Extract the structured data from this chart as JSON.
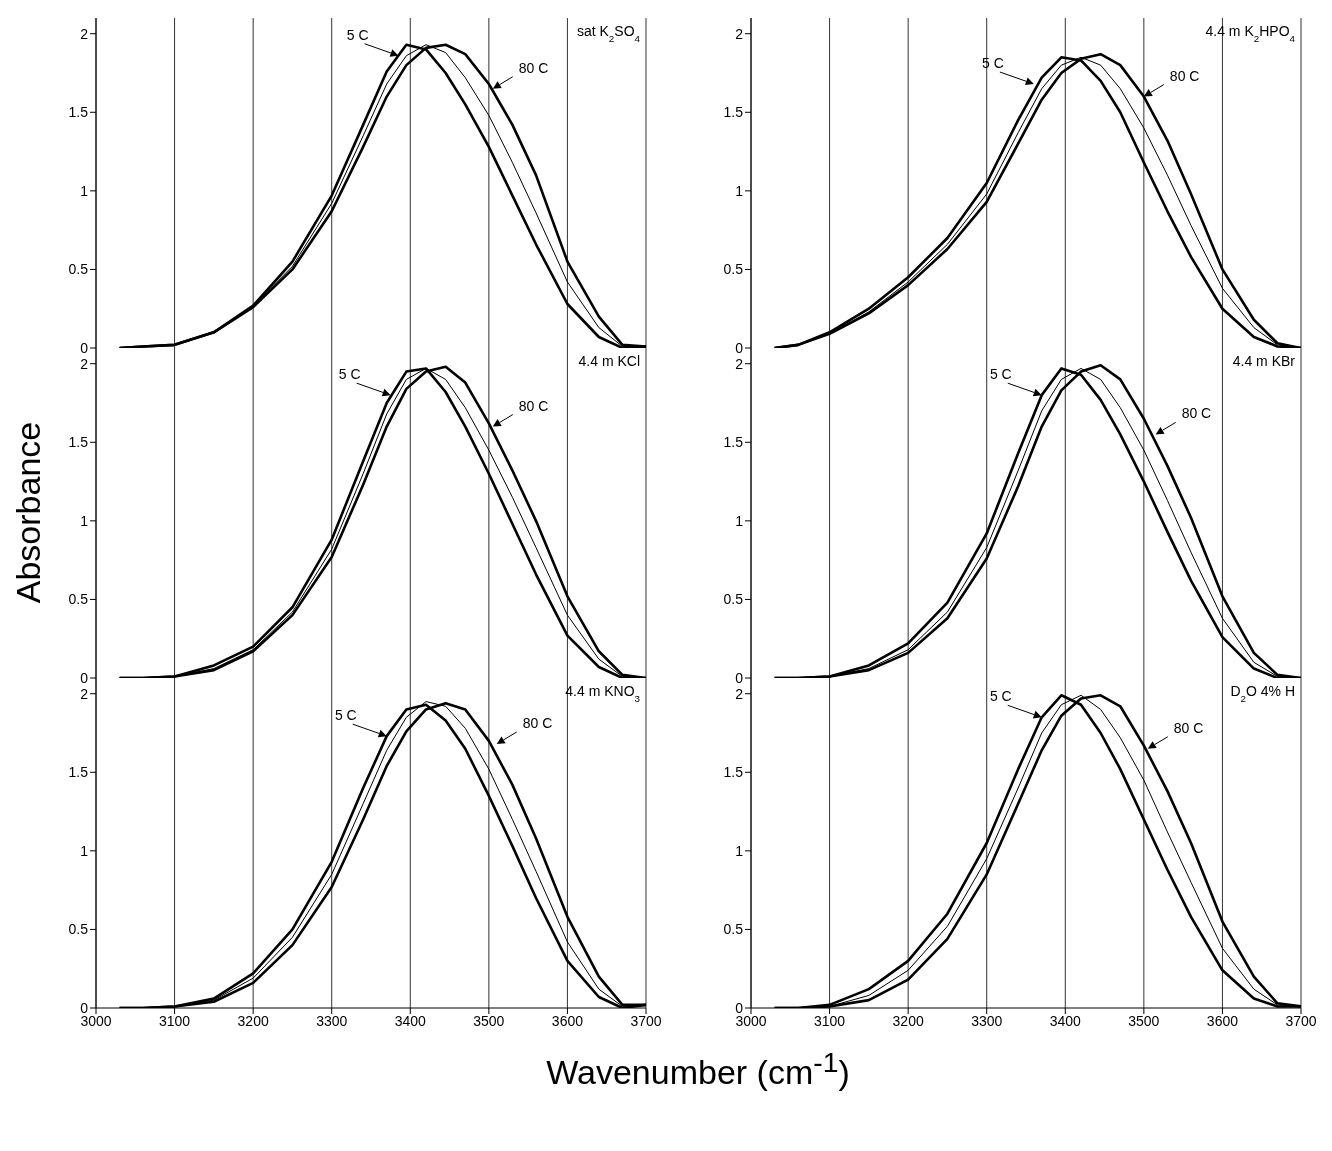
{
  "chart_data": [
    {
      "type": "line",
      "xlim": [
        3000,
        3700
      ],
      "xticks": [
        3000,
        3100,
        3200,
        3300,
        3400,
        3500,
        3600,
        3700
      ],
      "ylim": [
        0,
        2.1
      ],
      "yticks": [
        0,
        0.5,
        1,
        1.5,
        2
      ],
      "grid": "x",
      "tick_labels": "y",
      "marker": "none",
      "line_style": "solid",
      "ylabel": null,
      "x": [
        3030,
        3060,
        3100,
        3150,
        3200,
        3250,
        3300,
        3340,
        3370,
        3395,
        3420,
        3445,
        3470,
        3500,
        3530,
        3560,
        3600,
        3640,
        3670,
        3700
      ],
      "series": [
        {
          "color": "#000000",
          "values": [
            0,
            0.01,
            0.02,
            0.1,
            0.27,
            0.55,
            0.97,
            1.42,
            1.76,
            1.93,
            1.9,
            1.75,
            1.55,
            1.28,
            0.97,
            0.66,
            0.28,
            0.07,
            0,
            0.01
          ]
        },
        {
          "color": "#000000",
          "values": [
            0,
            0.01,
            0.02,
            0.1,
            0.27,
            0.52,
            0.92,
            1.35,
            1.68,
            1.86,
            1.93,
            1.88,
            1.72,
            1.48,
            1.18,
            0.86,
            0.42,
            0.13,
            0.01,
            0.01
          ]
        },
        {
          "color": "#000000",
          "values": [
            0,
            0.01,
            0.02,
            0.1,
            0.26,
            0.5,
            0.87,
            1.28,
            1.6,
            1.8,
            1.91,
            1.93,
            1.87,
            1.68,
            1.42,
            1.1,
            0.55,
            0.2,
            0.02,
            0.01
          ]
        }
      ],
      "annotations": [
        "sat K$_{2}$SO$_{4}$",
        {
          "text": "5 C",
          "x": 3385,
          "y": 1.86
        },
        {
          "text": "80 C",
          "x": 3505,
          "y": 1.65
        }
      ]
    },
    {
      "type": "line",
      "xlim": [
        3000,
        3700
      ],
      "xticks": [
        3000,
        3100,
        3200,
        3300,
        3400,
        3500,
        3600,
        3700
      ],
      "ylim": [
        0,
        2.1
      ],
      "yticks": [
        0,
        0.5,
        1,
        1.5,
        2
      ],
      "grid": "x",
      "tick_labels": "y",
      "marker": "none",
      "line_style": "solid",
      "x": [
        3030,
        3060,
        3100,
        3150,
        3200,
        3250,
        3300,
        3340,
        3370,
        3395,
        3420,
        3445,
        3470,
        3500,
        3530,
        3560,
        3600,
        3640,
        3670,
        3700
      ],
      "series": [
        {
          "color": "#000000",
          "values": [
            0,
            0.02,
            0.1,
            0.25,
            0.45,
            0.7,
            1.05,
            1.45,
            1.72,
            1.85,
            1.83,
            1.7,
            1.5,
            1.18,
            0.87,
            0.58,
            0.25,
            0.07,
            0.01,
            0
          ]
        },
        {
          "color": "#000000",
          "values": [
            0,
            0.02,
            0.09,
            0.23,
            0.42,
            0.66,
            0.98,
            1.37,
            1.65,
            1.8,
            1.85,
            1.8,
            1.65,
            1.4,
            1.1,
            0.78,
            0.38,
            0.13,
            0.02,
            0
          ]
        },
        {
          "color": "#000000",
          "values": [
            0,
            0.02,
            0.09,
            0.22,
            0.4,
            0.63,
            0.93,
            1.3,
            1.58,
            1.75,
            1.84,
            1.87,
            1.8,
            1.6,
            1.32,
            0.98,
            0.5,
            0.18,
            0.03,
            0
          ]
        }
      ],
      "annotations": [
        "4.4 m K$_{2}$HPO$_{4}$",
        {
          "text": "5 C",
          "x": 3360,
          "y": 1.68
        },
        {
          "text": "80 C",
          "x": 3500,
          "y": 1.6
        }
      ]
    },
    {
      "type": "line",
      "xlim": [
        3000,
        3700
      ],
      "xticks": [
        3000,
        3100,
        3200,
        3300,
        3400,
        3500,
        3600,
        3700
      ],
      "ylim": [
        0,
        2.1
      ],
      "yticks": [
        0,
        0.5,
        1,
        1.5,
        2
      ],
      "grid": "x",
      "tick_labels": "y",
      "marker": "none",
      "line_style": "solid",
      "ylabel": "Absorbance",
      "x": [
        3030,
        3060,
        3100,
        3150,
        3200,
        3250,
        3300,
        3340,
        3370,
        3395,
        3420,
        3445,
        3470,
        3500,
        3530,
        3560,
        3600,
        3640,
        3670,
        3700
      ],
      "series": [
        {
          "color": "#000000",
          "values": [
            0,
            0,
            0.01,
            0.08,
            0.2,
            0.45,
            0.88,
            1.38,
            1.75,
            1.95,
            1.97,
            1.82,
            1.6,
            1.3,
            0.98,
            0.66,
            0.27,
            0.07,
            0,
            0
          ]
        },
        {
          "color": "#000000",
          "values": [
            0,
            0,
            0.01,
            0.06,
            0.18,
            0.42,
            0.82,
            1.3,
            1.68,
            1.9,
            1.97,
            1.9,
            1.72,
            1.45,
            1.15,
            0.83,
            0.4,
            0.12,
            0.01,
            0
          ]
        },
        {
          "color": "#000000",
          "values": [
            0,
            0,
            0.01,
            0.05,
            0.17,
            0.4,
            0.77,
            1.23,
            1.6,
            1.84,
            1.95,
            1.98,
            1.88,
            1.62,
            1.32,
            1,
            0.52,
            0.17,
            0.02,
            0
          ]
        }
      ],
      "annotations": [
        "4.4 m KCl",
        {
          "text": "5 C",
          "x": 3375,
          "y": 1.8
        },
        {
          "text": "80 C",
          "x": 3505,
          "y": 1.6
        }
      ]
    },
    {
      "type": "line",
      "xlim": [
        3000,
        3700
      ],
      "xticks": [
        3000,
        3100,
        3200,
        3300,
        3400,
        3500,
        3600,
        3700
      ],
      "ylim": [
        0,
        2.1
      ],
      "yticks": [
        0,
        0.5,
        1,
        1.5,
        2
      ],
      "grid": "x",
      "tick_labels": "y",
      "marker": "none",
      "line_style": "solid",
      "x": [
        3030,
        3060,
        3100,
        3150,
        3200,
        3250,
        3300,
        3340,
        3370,
        3395,
        3420,
        3445,
        3470,
        3500,
        3530,
        3560,
        3600,
        3640,
        3670,
        3700
      ],
      "series": [
        {
          "color": "#000000",
          "values": [
            0,
            0,
            0.01,
            0.08,
            0.22,
            0.48,
            0.92,
            1.43,
            1.8,
            1.97,
            1.93,
            1.77,
            1.55,
            1.25,
            0.93,
            0.62,
            0.26,
            0.06,
            0,
            0
          ]
        },
        {
          "color": "#000000",
          "values": [
            0,
            0,
            0.01,
            0.06,
            0.18,
            0.42,
            0.83,
            1.32,
            1.7,
            1.9,
            1.97,
            1.9,
            1.72,
            1.45,
            1.13,
            0.8,
            0.38,
            0.1,
            0.01,
            0
          ]
        },
        {
          "color": "#000000",
          "values": [
            0,
            0,
            0.01,
            0.05,
            0.16,
            0.38,
            0.76,
            1.22,
            1.6,
            1.83,
            1.95,
            1.99,
            1.9,
            1.65,
            1.35,
            1.02,
            0.52,
            0.16,
            0.02,
            0
          ]
        }
      ],
      "annotations": [
        "4.4 m KBr",
        {
          "text": "5 C",
          "x": 3370,
          "y": 1.8
        },
        {
          "text": "80 C",
          "x": 3515,
          "y": 1.55
        }
      ]
    },
    {
      "type": "line",
      "xlim": [
        3000,
        3700
      ],
      "xticks": [
        3000,
        3100,
        3200,
        3300,
        3400,
        3500,
        3600,
        3700
      ],
      "ylim": [
        0,
        2.1
      ],
      "yticks": [
        0,
        0.5,
        1,
        1.5,
        2
      ],
      "grid": "x",
      "marker": "none",
      "line_style": "solid",
      "xlabel": "Wavenumber (cm$^{-1}$)",
      "x": [
        3030,
        3060,
        3100,
        3150,
        3200,
        3250,
        3300,
        3340,
        3370,
        3395,
        3420,
        3445,
        3470,
        3500,
        3530,
        3560,
        3600,
        3640,
        3670,
        3700
      ],
      "series": [
        {
          "color": "#000000",
          "values": [
            0,
            0,
            0.01,
            0.06,
            0.22,
            0.5,
            0.93,
            1.4,
            1.73,
            1.9,
            1.93,
            1.83,
            1.65,
            1.35,
            1.03,
            0.7,
            0.3,
            0.07,
            0,
            0.02
          ]
        },
        {
          "color": "#000000",
          "values": [
            0,
            0,
            0.01,
            0.05,
            0.19,
            0.45,
            0.85,
            1.3,
            1.64,
            1.85,
            1.95,
            1.92,
            1.78,
            1.52,
            1.2,
            0.87,
            0.42,
            0.12,
            0.01,
            0.02
          ]
        },
        {
          "color": "#000000",
          "values": [
            0,
            0,
            0.01,
            0.04,
            0.16,
            0.4,
            0.77,
            1.2,
            1.54,
            1.76,
            1.9,
            1.94,
            1.9,
            1.7,
            1.42,
            1.08,
            0.58,
            0.2,
            0.02,
            0.02
          ]
        }
      ],
      "annotations": [
        "4.4 m KNO$_{3}$",
        {
          "text": "5 C",
          "x": 3370,
          "y": 1.73
        },
        {
          "text": "80 C",
          "x": 3510,
          "y": 1.68
        }
      ]
    },
    {
      "type": "line",
      "xlim": [
        3000,
        3700
      ],
      "xticks": [
        3000,
        3100,
        3200,
        3300,
        3400,
        3500,
        3600,
        3700
      ],
      "ylim": [
        0,
        2.1
      ],
      "yticks": [
        0,
        0.5,
        1,
        1.5,
        2
      ],
      "grid": "x",
      "marker": "none",
      "line_style": "solid",
      "x": [
        3030,
        3060,
        3100,
        3150,
        3200,
        3250,
        3300,
        3340,
        3370,
        3395,
        3420,
        3445,
        3470,
        3500,
        3530,
        3560,
        3600,
        3640,
        3670,
        3700
      ],
      "series": [
        {
          "color": "#000000",
          "values": [
            0,
            0,
            0.02,
            0.12,
            0.3,
            0.6,
            1.05,
            1.52,
            1.85,
            1.99,
            1.93,
            1.75,
            1.52,
            1.2,
            0.88,
            0.58,
            0.24,
            0.06,
            0.01,
            0.01
          ]
        },
        {
          "color": "#000000",
          "values": [
            0,
            0,
            0.01,
            0.08,
            0.24,
            0.52,
            0.95,
            1.4,
            1.75,
            1.93,
            1.99,
            1.9,
            1.72,
            1.45,
            1.12,
            0.8,
            0.38,
            0.12,
            0.02,
            0.01
          ]
        },
        {
          "color": "#000000",
          "values": [
            0,
            0,
            0.01,
            0.05,
            0.18,
            0.44,
            0.85,
            1.3,
            1.64,
            1.86,
            1.97,
            1.99,
            1.92,
            1.67,
            1.38,
            1.05,
            0.55,
            0.2,
            0.03,
            0.01
          ]
        }
      ],
      "annotations": [
        "D$_{2}$O 4% H",
        {
          "text": "5 C",
          "x": 3370,
          "y": 1.85
        },
        {
          "text": "80 C",
          "x": 3505,
          "y": 1.65
        }
      ]
    }
  ]
}
